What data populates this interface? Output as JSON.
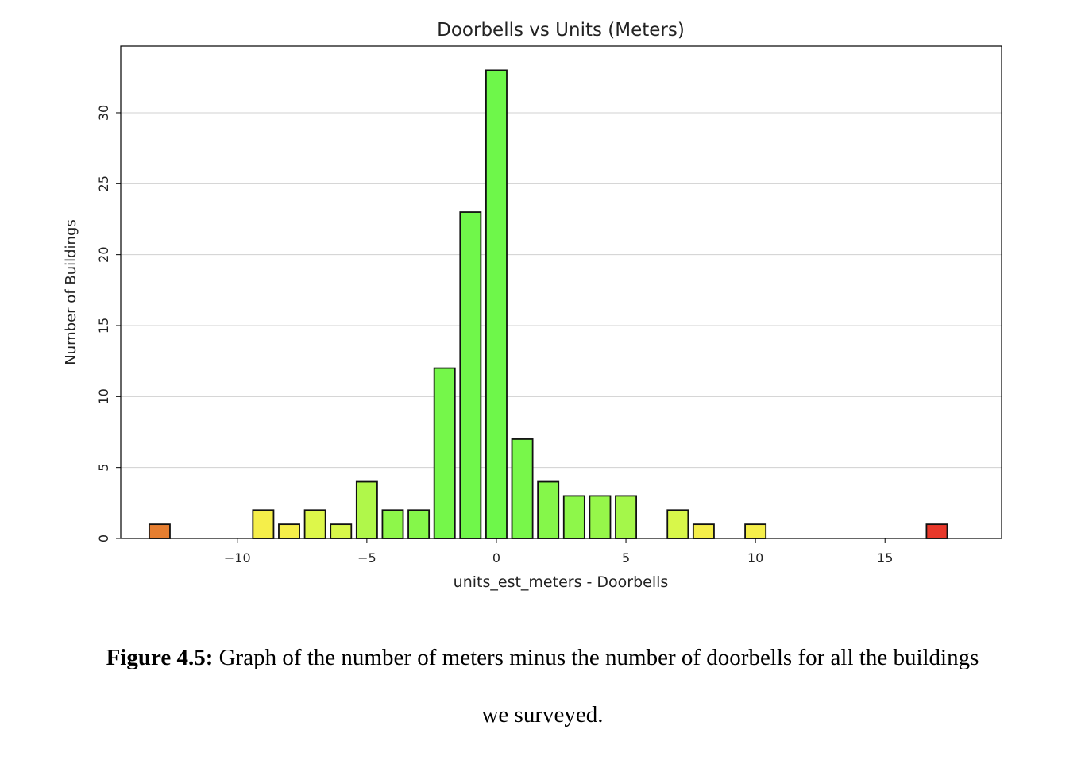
{
  "chart_data": {
    "type": "bar",
    "title": "Doorbells vs Units (Meters)",
    "xlabel": "units_est_meters - Doorbells",
    "ylabel": "Number of Buildings",
    "x": [
      -13,
      -9,
      -8,
      -7,
      -6,
      -5,
      -4,
      -3,
      -2,
      -1,
      0,
      1,
      2,
      3,
      4,
      5,
      7,
      8,
      10,
      17
    ],
    "values": [
      1,
      2,
      1,
      2,
      1,
      4,
      2,
      2,
      12,
      23,
      33,
      7,
      4,
      3,
      3,
      3,
      2,
      1,
      1,
      1
    ],
    "colors": [
      "#e67e30",
      "#f5ee4a",
      "#f5ee4a",
      "#ddf74a",
      "#d8f74a",
      "#b0f74a",
      "#8ef74a",
      "#85f74a",
      "#75f74a",
      "#70f74a",
      "#6ef74a",
      "#78f74a",
      "#85f74a",
      "#8ef74a",
      "#96f74a",
      "#a4f74a",
      "#d8f74a",
      "#f5ee4a",
      "#f5ee4a",
      "#e8382a"
    ],
    "xlim": [
      -14.5,
      19.5
    ],
    "ylim": [
      0,
      34.7
    ],
    "xticks": [
      -10,
      -5,
      0,
      5,
      10,
      15
    ],
    "xtick_labels": [
      "−10",
      "−5",
      "0",
      "5",
      "10",
      "15"
    ],
    "yticks": [
      0,
      5,
      10,
      15,
      20,
      25,
      30
    ],
    "ytick_labels": [
      "0",
      "5",
      "10",
      "15",
      "20",
      "25",
      "30"
    ],
    "grid": "y"
  },
  "caption": {
    "label": "Figure 4.5:",
    "line1": " Graph of the number of meters minus the number of doorbells for all the buildings",
    "line2": "we surveyed."
  }
}
